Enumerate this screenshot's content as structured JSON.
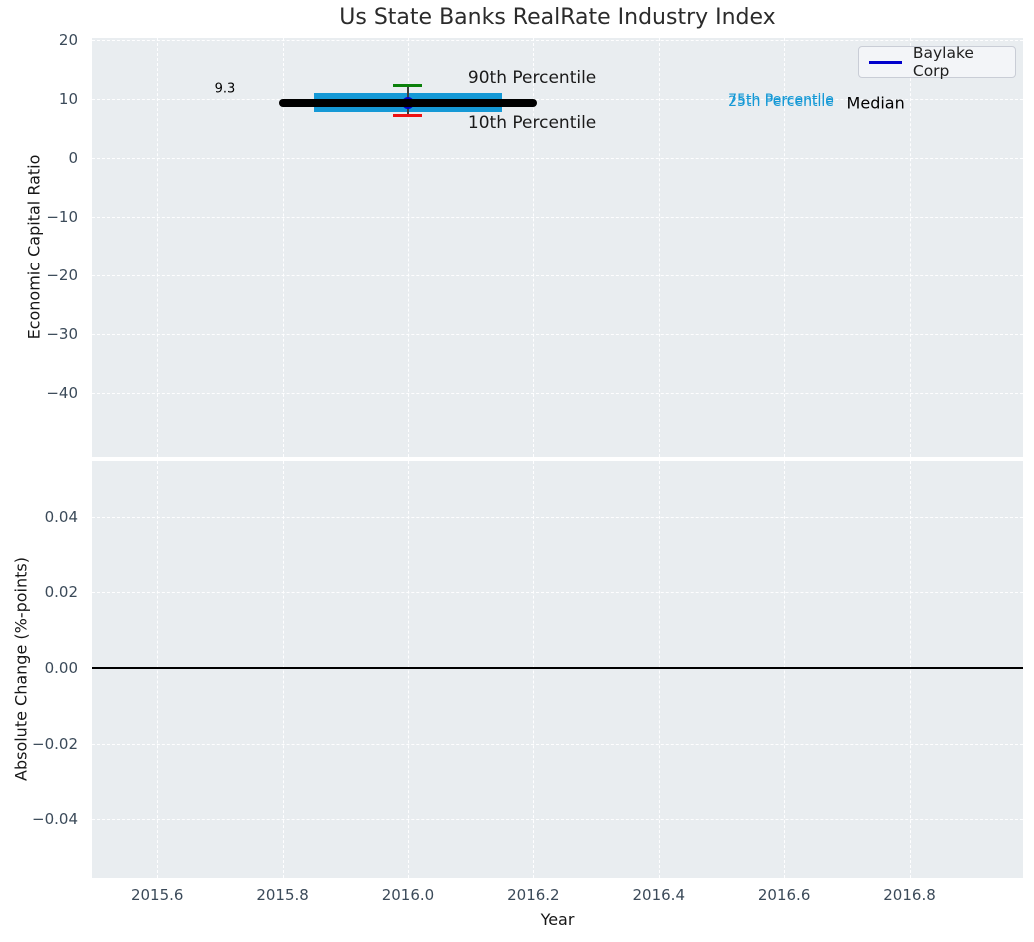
{
  "title": "Us State Banks RealRate Industry Index",
  "xlabel": "Year",
  "legend": {
    "label": "Baylake Corp",
    "line_color": "#0000cc"
  },
  "top_plot": {
    "ylabel": "Economic Capital Ratio"
  },
  "bottom_plot": {
    "ylabel": "Absolute Change (%-points)"
  },
  "colors": {
    "plot_background": "#e9edf0",
    "grid": "#ffffff",
    "tick_label": "#3b4a59",
    "iqr_band": "#1599d6",
    "median": "#000000",
    "p90_cap": "#0b800b",
    "p10_cap": "#ee1111",
    "company_marker": "#0000cc"
  },
  "chart_data": [
    {
      "type": "line",
      "title": "Us State Banks RealRate Industry Index",
      "xlabel": "Year",
      "ylabel": "Economic Capital Ratio",
      "xlim": [
        2015.496,
        2016.981
      ],
      "ylim": [
        -50.9,
        20.4
      ],
      "grid": true,
      "legend_position": "upper right",
      "xtick_values": [
        2015.6,
        2015.8,
        2016.0,
        2016.2,
        2016.4,
        2016.6,
        2016.8
      ],
      "xtick_labels": [
        "2015.6",
        "2015.8",
        "2016.0",
        "2016.2",
        "2016.4",
        "2016.6",
        "2016.8"
      ],
      "ytick_values": [
        20,
        10,
        0,
        -10,
        -20,
        -30,
        -40
      ],
      "ytick_labels": [
        "20",
        "10",
        "0",
        "−10",
        "−20",
        "−30",
        "−40"
      ],
      "series": [
        {
          "name": "Baylake Corp",
          "type": "scatter",
          "x": [
            2016.0
          ],
          "y": [
            9.3
          ],
          "color": "#0000cc",
          "markersize": 12
        },
        {
          "name": "Median",
          "type": "line",
          "x": [
            2015.8,
            2016.2
          ],
          "y": [
            9.3,
            9.3
          ],
          "color": "#000000",
          "linewidth": 8
        },
        {
          "name": "25th-75th Percentile band",
          "type": "band",
          "x": [
            2015.85,
            2016.15
          ],
          "y_low": 7.75,
          "y_high": 11.0,
          "color": "#1599d6"
        },
        {
          "name": "90th Percentile",
          "type": "errorcap",
          "x": 2016.0,
          "y": 12.3,
          "color": "#0b800b"
        },
        {
          "name": "10th Percentile",
          "type": "errorcap",
          "x": 2016.0,
          "y": 7.2,
          "color": "#ee1111"
        }
      ],
      "annotations": [
        {
          "text": "9.3",
          "x": 2015.708,
          "y": 11.7,
          "style": "small-black"
        },
        {
          "text": "90th Percentile",
          "x": 2016.198,
          "y": 13.6,
          "style": "big-black"
        },
        {
          "text": "10th Percentile",
          "x": 2016.198,
          "y": 5.9,
          "style": "big-black"
        },
        {
          "text": "75th Percentile",
          "x": 2016.595,
          "y": 9.8,
          "style": "cyan"
        },
        {
          "text": "25th Percentile",
          "x": 2016.595,
          "y": 9.45,
          "style": "cyan"
        },
        {
          "text": "Median",
          "x": 2016.746,
          "y": 9.3,
          "style": "median-black"
        }
      ]
    },
    {
      "type": "line",
      "xlabel": "Year",
      "ylabel": "Absolute Change (%-points)",
      "xlim": [
        2015.496,
        2016.981
      ],
      "ylim": [
        -0.0556,
        0.0548
      ],
      "grid": true,
      "xtick_values": [
        2015.6,
        2015.8,
        2016.0,
        2016.2,
        2016.4,
        2016.6,
        2016.8
      ],
      "xtick_labels": [
        "2015.6",
        "2015.8",
        "2016.0",
        "2016.2",
        "2016.4",
        "2016.6",
        "2016.8"
      ],
      "ytick_values": [
        0.04,
        0.02,
        0,
        -0.02,
        -0.04
      ],
      "ytick_labels": [
        "0.04",
        "0.02",
        "0.00",
        "−0.02",
        "−0.04"
      ],
      "series": [
        {
          "name": "zero line",
          "type": "line",
          "x": [
            2015.496,
            2016.981
          ],
          "y": [
            0,
            0
          ],
          "color": "#000000",
          "linewidth": 2
        }
      ]
    }
  ]
}
